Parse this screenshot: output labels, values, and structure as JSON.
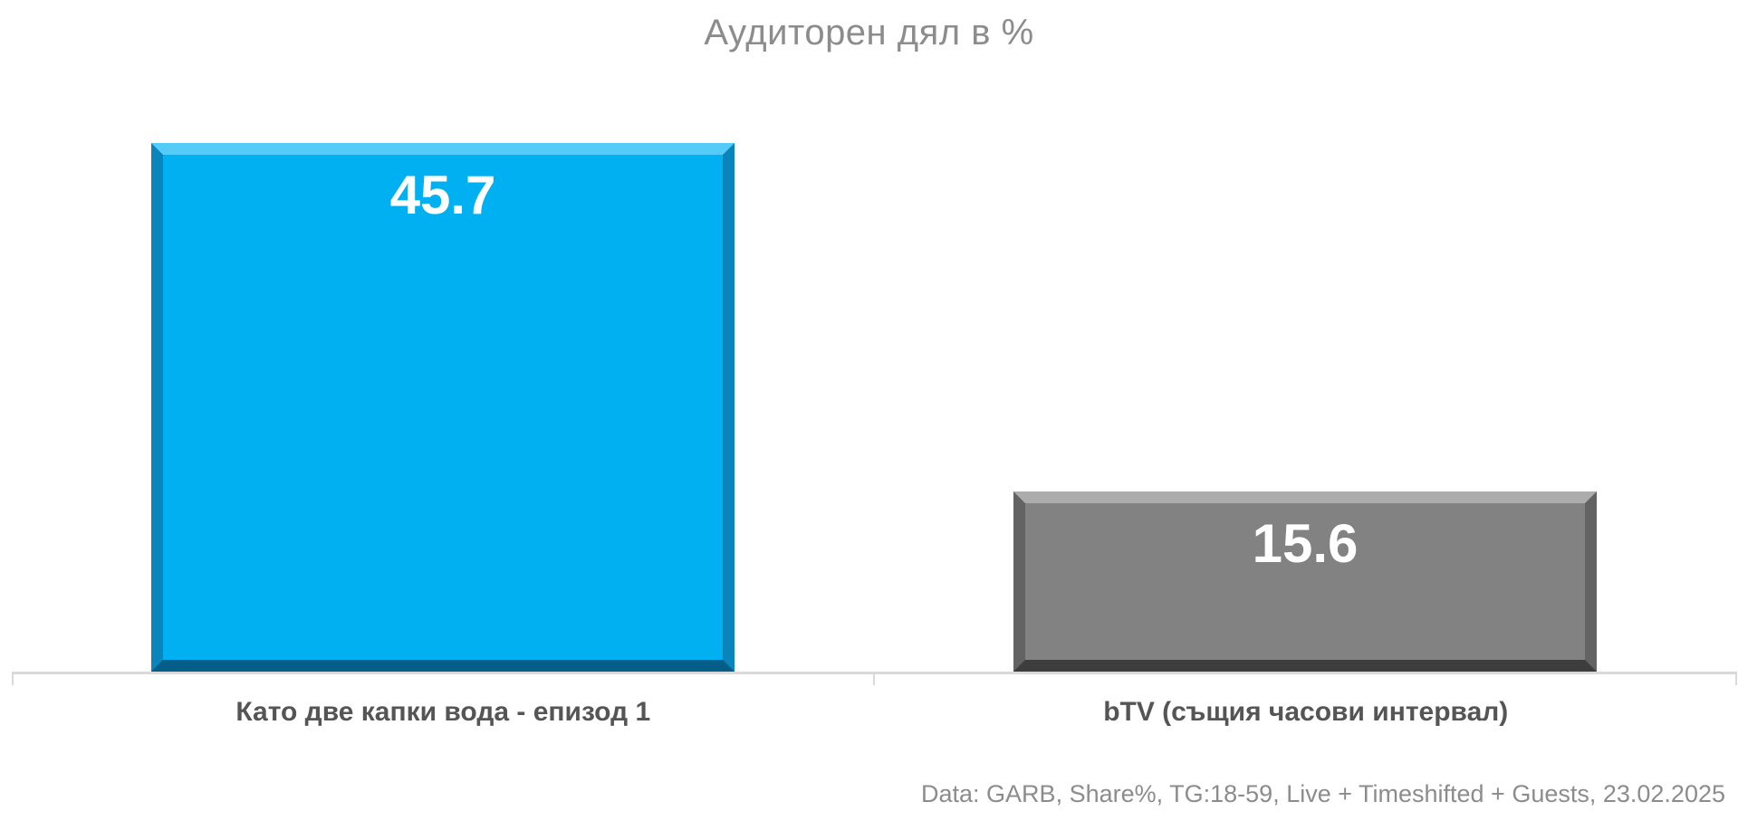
{
  "chart_data": {
    "type": "bar",
    "title": "Аудиторен дял в %",
    "categories": [
      "Като две капки вода - епизод 1",
      "bTV (същия часови интервал)"
    ],
    "values": [
      45.7,
      15.6
    ],
    "series": [
      {
        "name": "Като две капки вода - епизод 1",
        "value": 45.7,
        "color": "#00b0f0"
      },
      {
        "name": "bTV (същия часови интервал)",
        "value": 15.6,
        "color": "#828282"
      }
    ],
    "xlabel": "",
    "ylabel": "",
    "ylim": [
      0,
      45.7
    ],
    "grid": false,
    "legend": false,
    "value_labels_shown": true,
    "footnote": "Data: GARB, Share%, TG:18-59, Live + Timeshifted + Guests, 23.02.2025"
  },
  "colors": {
    "bar1_fill": "#00b0f0",
    "bar1_bevel_top": "#55ccf7",
    "bar1_bevel_side": "#0a85bc",
    "bar1_bevel_bottom": "#055e88",
    "bar2_fill": "#828282",
    "bar2_bevel_top": "#acacac",
    "bar2_bevel_side": "#636363",
    "bar2_bevel_bottom": "#3d3d3d",
    "axis_line": "#d9d9d9",
    "title_text": "#8c8c8c",
    "category_text": "#555555",
    "footnote_text": "#8c8c8c",
    "value_text": "#ffffff"
  }
}
